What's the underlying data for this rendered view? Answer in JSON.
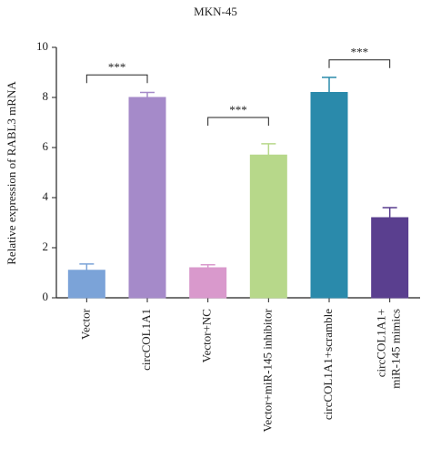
{
  "chart_data": {
    "type": "bar",
    "title": "MKN-45",
    "ylabel": "Relative expression of RABL3 mRNA",
    "categories": [
      "Vector",
      "circCOL1A1",
      "Vector+NC",
      "Vector+miR-145 inhibitor",
      "circCOL1A1+scramble",
      "circCOL1A1+\nmiR-145 mimics"
    ],
    "values": [
      1.1,
      8.0,
      1.2,
      5.7,
      8.2,
      3.2
    ],
    "errors": [
      0.25,
      0.2,
      0.12,
      0.45,
      0.6,
      0.4
    ],
    "colors": [
      "#7ba3d8",
      "#a58ac9",
      "#d999cc",
      "#b7d88a",
      "#2a8aab",
      "#5a3f8f"
    ],
    "ylim": [
      0,
      10
    ],
    "yticks": [
      0,
      2,
      4,
      6,
      8,
      10
    ],
    "annotations": [
      {
        "from": 0,
        "to": 1,
        "label": "***",
        "y": 8.9
      },
      {
        "from": 2,
        "to": 3,
        "label": "***",
        "y": 7.2
      },
      {
        "from": 4,
        "to": 5,
        "label": "***",
        "y": 9.5
      }
    ]
  }
}
